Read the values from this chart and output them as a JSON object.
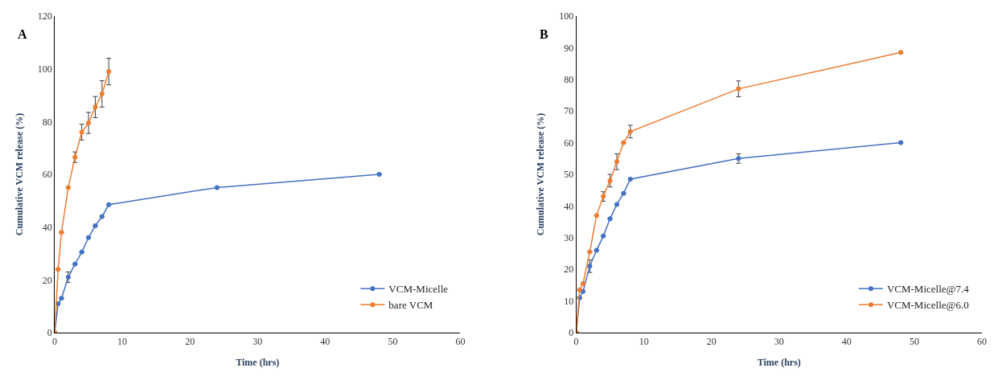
{
  "chart_data": [
    {
      "type": "line",
      "title": "A",
      "xlabel": "Time (hrs)",
      "ylabel": "Cumulative VCM release (%)",
      "xlim": [
        0,
        60
      ],
      "xticks": [
        0,
        10,
        20,
        30,
        40,
        50,
        60
      ],
      "ylim": [
        0,
        120
      ],
      "yticks": [
        0,
        20,
        40,
        60,
        80,
        100,
        120
      ],
      "legend": "bottom right",
      "marker": "circle",
      "line_style": "solid",
      "series": [
        {
          "name": "VCM-Micelle",
          "color": "#4472c4",
          "x": [
            0,
            0.5,
            1,
            2,
            3,
            4,
            5,
            6,
            7,
            8,
            24,
            48
          ],
          "values": [
            0,
            11,
            13,
            21,
            26,
            30.5,
            36,
            40.5,
            44,
            48.5,
            55,
            60
          ],
          "errors": [
            null,
            null,
            null,
            2,
            null,
            null,
            null,
            null,
            null,
            null,
            null,
            null
          ]
        },
        {
          "name": "bare VCM",
          "color": "#ed7d31",
          "x": [
            0,
            0.5,
            1,
            2,
            3,
            4,
            5,
            6,
            7,
            8
          ],
          "values": [
            0,
            24,
            38,
            55,
            66.5,
            76,
            79.5,
            85.5,
            90.5,
            99
          ],
          "errors": [
            null,
            null,
            null,
            null,
            2,
            3,
            4,
            4,
            5,
            5
          ]
        }
      ]
    },
    {
      "type": "line",
      "title": "B",
      "xlabel": "Time (hrs)",
      "ylabel": "Cumulative VCM release (%)",
      "xlim": [
        0,
        60
      ],
      "xticks": [
        0,
        10,
        20,
        30,
        40,
        50,
        60
      ],
      "ylim": [
        0,
        100
      ],
      "yticks": [
        0,
        10,
        20,
        30,
        40,
        50,
        60,
        70,
        80,
        90,
        100
      ],
      "legend": "bottom right",
      "marker": "circle",
      "line_style": "solid",
      "series": [
        {
          "name": "VCM-Micelle@7.4",
          "color": "#4472c4",
          "x": [
            0,
            0.5,
            1,
            2,
            3,
            4,
            5,
            6,
            7,
            8,
            24,
            48
          ],
          "values": [
            0,
            11,
            13,
            21,
            26,
            30.5,
            36,
            40.5,
            44,
            48.5,
            55,
            60
          ],
          "errors": [
            null,
            null,
            null,
            2,
            null,
            null,
            null,
            null,
            null,
            null,
            1.5,
            null
          ]
        },
        {
          "name": "VCM-Micelle@6.0",
          "color": "#ed7d31",
          "x": [
            0,
            0.5,
            1,
            2,
            3,
            4,
            5,
            6,
            7,
            8,
            24,
            48
          ],
          "values": [
            0,
            13.5,
            15.5,
            25.5,
            37,
            43,
            48,
            54,
            60,
            63.5,
            77,
            88.5
          ],
          "errors": [
            null,
            null,
            null,
            null,
            null,
            1.5,
            2,
            2.5,
            null,
            2,
            2.5,
            null
          ]
        }
      ]
    }
  ]
}
